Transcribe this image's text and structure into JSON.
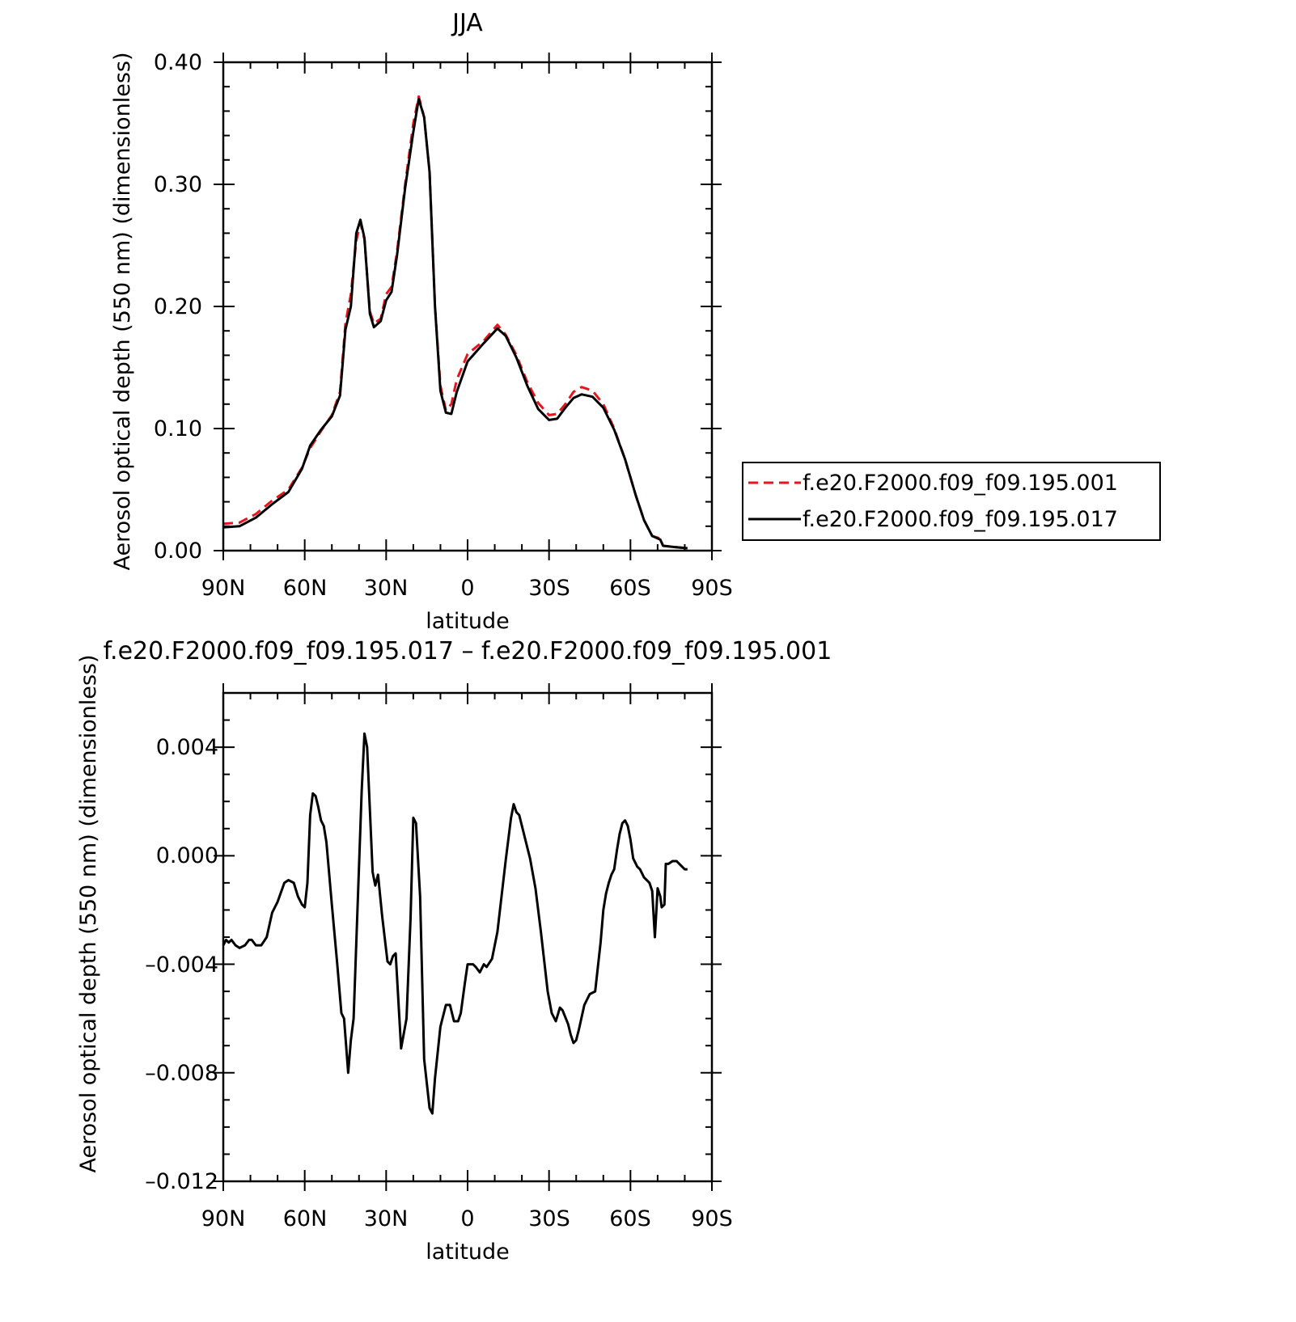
{
  "colors": {
    "background": "#ffffff",
    "axes": "#000000",
    "series_001": "#e8141c",
    "series_017": "#000000"
  },
  "chart_data": [
    {
      "type": "line",
      "title": "JJA",
      "xlabel": "latitude",
      "ylabel": "Aerosol optical depth (550 nm) (dimensionless)",
      "xlim": [
        90,
        -90
      ],
      "ylim": [
        0,
        0.4
      ],
      "x_direction": "north-to-south",
      "xticks": [
        90,
        60,
        30,
        0,
        -30,
        -60,
        -90
      ],
      "xtick_labels": [
        "90N",
        "60N",
        "30N",
        "0",
        "30S",
        "60S",
        "90S"
      ],
      "yticks": [
        0,
        0.1,
        0.2,
        0.3,
        0.4
      ],
      "ytick_labels": [
        "0.00",
        "0.10",
        "0.20",
        "0.30",
        "0.40"
      ],
      "grid": false,
      "legend_position": "right",
      "series": [
        {
          "name": "f.e20.F2000.f09_f09.195.001",
          "style": "dashed",
          "color": "#e8141c",
          "points": [
            [
              90,
              0.022
            ],
            [
              84,
              0.023
            ],
            [
              78,
              0.03
            ],
            [
              72,
              0.041
            ],
            [
              66,
              0.05
            ],
            [
              61,
              0.068
            ],
            [
              58,
              0.084
            ],
            [
              54,
              0.098
            ],
            [
              50,
              0.111
            ],
            [
              47,
              0.13
            ],
            [
              45,
              0.186
            ],
            [
              43,
              0.21
            ],
            [
              41,
              0.254
            ],
            [
              39.5,
              0.268
            ],
            [
              38,
              0.255
            ],
            [
              36,
              0.196
            ],
            [
              34.5,
              0.186
            ],
            [
              32,
              0.19
            ],
            [
              30,
              0.21
            ],
            [
              28,
              0.216
            ],
            [
              26,
              0.245
            ],
            [
              23,
              0.3
            ],
            [
              20,
              0.35
            ],
            [
              18,
              0.372
            ],
            [
              16,
              0.355
            ],
            [
              14,
              0.31
            ],
            [
              12,
              0.2
            ],
            [
              10,
              0.135
            ],
            [
              8,
              0.115
            ],
            [
              6,
              0.12
            ],
            [
              4,
              0.14
            ],
            [
              0,
              0.161
            ],
            [
              -6,
              0.172
            ],
            [
              -11,
              0.185
            ],
            [
              -14,
              0.177
            ],
            [
              -18,
              0.16
            ],
            [
              -22,
              0.138
            ],
            [
              -26,
              0.121
            ],
            [
              -30,
              0.111
            ],
            [
              -33,
              0.112
            ],
            [
              -36,
              0.12
            ],
            [
              -39,
              0.13
            ],
            [
              -42,
              0.134
            ],
            [
              -46,
              0.131
            ],
            [
              -50,
              0.12
            ],
            [
              -54,
              0.1
            ],
            [
              -58,
              0.075
            ],
            [
              -62,
              0.045
            ],
            [
              -65,
              0.025
            ],
            [
              -68,
              0.012
            ],
            [
              -71,
              0.01
            ],
            [
              -72,
              0.004
            ],
            [
              -76,
              0.003
            ],
            [
              -81,
              0.002
            ]
          ]
        },
        {
          "name": "f.e20.F2000.f09_f09.195.017",
          "style": "solid",
          "color": "#000000",
          "points": [
            [
              90,
              0.019
            ],
            [
              84,
              0.02
            ],
            [
              78,
              0.027
            ],
            [
              72,
              0.038
            ],
            [
              66,
              0.048
            ],
            [
              61,
              0.067
            ],
            [
              58,
              0.086
            ],
            [
              54,
              0.099
            ],
            [
              50,
              0.11
            ],
            [
              47,
              0.127
            ],
            [
              45,
              0.181
            ],
            [
              43,
              0.2
            ],
            [
              41,
              0.26
            ],
            [
              39.5,
              0.271
            ],
            [
              38,
              0.256
            ],
            [
              36,
              0.194
            ],
            [
              34.5,
              0.183
            ],
            [
              32,
              0.188
            ],
            [
              30,
              0.205
            ],
            [
              28,
              0.212
            ],
            [
              26,
              0.242
            ],
            [
              23,
              0.297
            ],
            [
              20,
              0.343
            ],
            [
              18,
              0.37
            ],
            [
              16,
              0.355
            ],
            [
              14,
              0.31
            ],
            [
              12,
              0.2
            ],
            [
              10,
              0.131
            ],
            [
              8,
              0.113
            ],
            [
              6,
              0.112
            ],
            [
              4,
              0.13
            ],
            [
              0,
              0.155
            ],
            [
              -6,
              0.17
            ],
            [
              -11,
              0.182
            ],
            [
              -14,
              0.176
            ],
            [
              -18,
              0.158
            ],
            [
              -22,
              0.135
            ],
            [
              -26,
              0.116
            ],
            [
              -30,
              0.107
            ],
            [
              -33,
              0.108
            ],
            [
              -36,
              0.117
            ],
            [
              -39,
              0.125
            ],
            [
              -42,
              0.128
            ],
            [
              -46,
              0.126
            ],
            [
              -50,
              0.117
            ],
            [
              -54,
              0.099
            ],
            [
              -58,
              0.075
            ],
            [
              -62,
              0.045
            ],
            [
              -65,
              0.025
            ],
            [
              -68,
              0.012
            ],
            [
              -71,
              0.009
            ],
            [
              -72,
              0.004
            ],
            [
              -76,
              0.003
            ],
            [
              -81,
              0.002
            ]
          ]
        }
      ]
    },
    {
      "type": "line",
      "title": "f.e20.F2000.f09_f09.195.017 – f.e20.F2000.f09_f09.195.001",
      "xlabel": "latitude",
      "ylabel": "Aerosol optical depth (550 nm) (dimensionless)",
      "xlim": [
        90,
        -90
      ],
      "ylim": [
        -0.012,
        0.006
      ],
      "x_direction": "north-to-south",
      "xticks": [
        90,
        60,
        30,
        0,
        -30,
        -60,
        -90
      ],
      "xtick_labels": [
        "90N",
        "60N",
        "30N",
        "0",
        "30S",
        "60S",
        "90S"
      ],
      "yticks": [
        -0.012,
        -0.008,
        -0.004,
        0,
        0.004
      ],
      "ytick_labels": [
        "–0.012",
        "–0.008",
        "–0.004",
        "0.000",
        "0.004"
      ],
      "grid": false,
      "series": [
        {
          "style": "solid",
          "color": "#000000",
          "points": [
            [
              90,
              -0.0033
            ],
            [
              89,
              -0.0031
            ],
            [
              88,
              -0.0032
            ],
            [
              87,
              -0.0031
            ],
            [
              85.5,
              -0.0033
            ],
            [
              84,
              -0.0034
            ],
            [
              82,
              -0.0033
            ],
            [
              80.5,
              -0.0031
            ],
            [
              79.5,
              -0.0031
            ],
            [
              78,
              -0.0033
            ],
            [
              76,
              -0.0033
            ],
            [
              74,
              -0.003
            ],
            [
              72,
              -0.0021
            ],
            [
              70,
              -0.0017
            ],
            [
              67.5,
              -0.001
            ],
            [
              66,
              -0.0009
            ],
            [
              64,
              -0.001
            ],
            [
              62.5,
              -0.0015
            ],
            [
              61,
              -0.0018
            ],
            [
              60,
              -0.0019
            ],
            [
              59,
              -0.001
            ],
            [
              58,
              0.0015
            ],
            [
              57,
              0.0023
            ],
            [
              56,
              0.0022
            ],
            [
              55,
              0.0018
            ],
            [
              54,
              0.0013
            ],
            [
              53,
              0.0011
            ],
            [
              52,
              0.0005
            ],
            [
              50,
              -0.0018
            ],
            [
              48,
              -0.004
            ],
            [
              46.5,
              -0.0058
            ],
            [
              45.5,
              -0.006
            ],
            [
              44,
              -0.008
            ],
            [
              43,
              -0.0068
            ],
            [
              42,
              -0.006
            ],
            [
              39,
              0.0024
            ],
            [
              38,
              0.0045
            ],
            [
              37,
              0.004
            ],
            [
              35,
              -0.0006
            ],
            [
              34,
              -0.0011
            ],
            [
              33,
              -0.0007
            ],
            [
              31.5,
              -0.0022
            ],
            [
              29.5,
              -0.0039
            ],
            [
              28.5,
              -0.004
            ],
            [
              27.5,
              -0.0037
            ],
            [
              26.5,
              -0.0036
            ],
            [
              24.5,
              -0.0071
            ],
            [
              22.5,
              -0.006
            ],
            [
              21,
              -0.0023
            ],
            [
              20,
              0.0014
            ],
            [
              19,
              0.0012
            ],
            [
              17.5,
              -0.0015
            ],
            [
              16,
              -0.0075
            ],
            [
              14,
              -0.0093
            ],
            [
              13,
              -0.0095
            ],
            [
              12,
              -0.0082
            ],
            [
              10,
              -0.0063
            ],
            [
              8,
              -0.0055
            ],
            [
              6.5,
              -0.0055
            ],
            [
              5,
              -0.0061
            ],
            [
              3.5,
              -0.0061
            ],
            [
              2.5,
              -0.0058
            ],
            [
              1,
              -0.0047
            ],
            [
              0,
              -0.004
            ],
            [
              -2,
              -0.004
            ],
            [
              -3,
              -0.0041
            ],
            [
              -4.5,
              -0.0043
            ],
            [
              -6,
              -0.004
            ],
            [
              -7,
              -0.0041
            ],
            [
              -9,
              -0.0038
            ],
            [
              -11,
              -0.0028
            ],
            [
              -14,
              -0.0002
            ],
            [
              -16,
              0.0014
            ],
            [
              -17,
              0.0019
            ],
            [
              -18,
              0.0016
            ],
            [
              -19,
              0.0015
            ],
            [
              -23,
              -0.0001
            ],
            [
              -25,
              -0.0012
            ],
            [
              -27,
              -0.0028
            ],
            [
              -29.5,
              -0.005
            ],
            [
              -31,
              -0.0058
            ],
            [
              -32.5,
              -0.0061
            ],
            [
              -34,
              -0.0056
            ],
            [
              -35,
              -0.0057
            ],
            [
              -37,
              -0.0062
            ],
            [
              -38,
              -0.0066
            ],
            [
              -39,
              -0.0069
            ],
            [
              -40,
              -0.0068
            ],
            [
              -41,
              -0.0064
            ],
            [
              -43,
              -0.0055
            ],
            [
              -45,
              -0.0051
            ],
            [
              -47,
              -0.005
            ],
            [
              -49,
              -0.0032
            ],
            [
              -50,
              -0.002
            ],
            [
              -51,
              -0.0014
            ],
            [
              -52,
              -0.001
            ],
            [
              -53,
              -0.0007
            ],
            [
              -54,
              -0.0005
            ],
            [
              -55,
              0.0002
            ],
            [
              -56,
              0.0008
            ],
            [
              -57,
              0.0012
            ],
            [
              -58,
              0.0013
            ],
            [
              -59,
              0.0011
            ],
            [
              -60,
              0.0006
            ],
            [
              -61,
              -0.0001
            ],
            [
              -62.5,
              -0.0004
            ],
            [
              -63.5,
              -0.0005
            ],
            [
              -65,
              -0.0008
            ],
            [
              -66,
              -0.0009
            ],
            [
              -67,
              -0.001
            ],
            [
              -68,
              -0.0013
            ],
            [
              -69,
              -0.003
            ],
            [
              -70,
              -0.0012
            ],
            [
              -71,
              -0.0015
            ],
            [
              -71.5,
              -0.0019
            ],
            [
              -72.5,
              -0.0018
            ],
            [
              -73,
              -0.0003
            ],
            [
              -74,
              -0.0003
            ],
            [
              -75.5,
              -0.0002
            ],
            [
              -77,
              -0.0002
            ],
            [
              -78,
              -0.0003
            ],
            [
              -79,
              -0.0004
            ],
            [
              -80,
              -0.0005
            ],
            [
              -81,
              -0.0005
            ]
          ]
        }
      ]
    }
  ]
}
